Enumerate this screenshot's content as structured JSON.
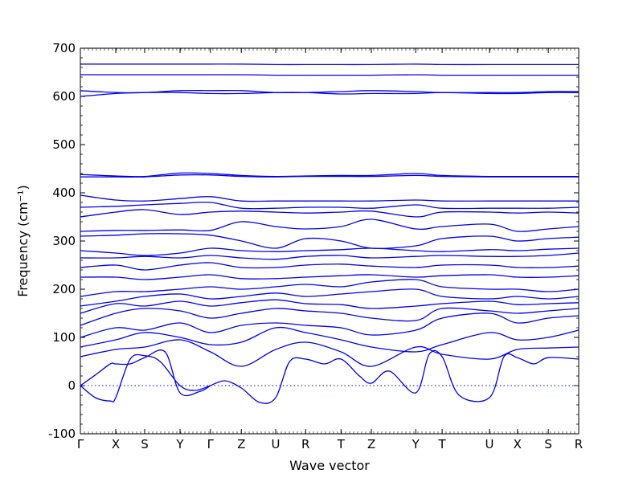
{
  "chart_data": {
    "type": "line",
    "title": "",
    "xlabel": "Wave vector",
    "ylabel": "Frequency (cm⁻¹)",
    "ylim": [
      -100,
      700
    ],
    "yticks": [
      -100,
      0,
      100,
      200,
      300,
      400,
      500,
      600,
      700
    ],
    "x_ticks": [
      {
        "label": "Γ",
        "x": 0.0
      },
      {
        "label": "X",
        "x": 0.071
      },
      {
        "label": "S",
        "x": 0.129
      },
      {
        "label": "Y",
        "x": 0.2
      },
      {
        "label": "Γ",
        "x": 0.261
      },
      {
        "label": "Z",
        "x": 0.323
      },
      {
        "label": "U",
        "x": 0.392
      },
      {
        "label": "R",
        "x": 0.452
      },
      {
        "label": "T",
        "x": 0.523
      },
      {
        "label": "Z",
        "x": 0.584
      },
      {
        "label": "Y",
        "x": 0.673
      },
      {
        "label": "T",
        "x": 0.726
      },
      {
        "label": "U",
        "x": 0.821
      },
      {
        "label": "X",
        "x": 0.877
      },
      {
        "label": "S",
        "x": 0.939
      },
      {
        "label": "R",
        "x": 1.0
      }
    ],
    "zero_reference_line": {
      "y": 0,
      "style": "dotted"
    },
    "line_color": "#0000ee",
    "series": [
      {
        "x": [
          0,
          0.03,
          0.06,
          0.071,
          0.1,
          0.129,
          0.16,
          0.2,
          0.23,
          0.261
        ],
        "y": [
          0,
          -25,
          -32,
          -25,
          55,
          62,
          50,
          0,
          -10,
          0
        ]
      },
      {
        "x": [
          0,
          0.03,
          0.06,
          0.071,
          0.1,
          0.129,
          0.17,
          0.2,
          0.24,
          0.261
        ],
        "y": [
          0,
          22,
          45,
          45,
          45,
          58,
          70,
          -15,
          -12,
          0
        ]
      },
      {
        "x": [
          0.261,
          0.29,
          0.323,
          0.36,
          0.392,
          0.42,
          0.452,
          0.49,
          0.523,
          0.56,
          0.584,
          0.62,
          0.673,
          0.7,
          0.726,
          0.76,
          0.821,
          0.85,
          0.877,
          0.91,
          0.939,
          1.0
        ],
        "y": [
          0,
          10,
          -5,
          -35,
          -25,
          50,
          55,
          45,
          55,
          20,
          5,
          30,
          -15,
          65,
          60,
          -20,
          -25,
          60,
          58,
          45,
          58,
          55
        ]
      },
      {
        "x": [
          0,
          0.071,
          0.129,
          0.2,
          0.261,
          0.323,
          0.392,
          0.452,
          0.523,
          0.584,
          0.673,
          0.726,
          0.821,
          0.877,
          0.939,
          1.0
        ],
        "y": [
          60,
          75,
          80,
          95,
          70,
          40,
          75,
          90,
          70,
          40,
          80,
          65,
          55,
          75,
          78,
          80
        ]
      },
      {
        "x": [
          0,
          0.071,
          0.129,
          0.2,
          0.261,
          0.323,
          0.392,
          0.452,
          0.523,
          0.584,
          0.673,
          0.726,
          0.821,
          0.877,
          0.939,
          1.0
        ],
        "y": [
          80,
          95,
          110,
          100,
          85,
          90,
          120,
          110,
          95,
          80,
          70,
          85,
          110,
          95,
          100,
          115
        ]
      },
      {
        "x": [
          0,
          0.071,
          0.129,
          0.2,
          0.261,
          0.323,
          0.392,
          0.452,
          0.523,
          0.584,
          0.673,
          0.726,
          0.821,
          0.877,
          0.939,
          1.0
        ],
        "y": [
          100,
          120,
          115,
          130,
          110,
          125,
          130,
          125,
          120,
          105,
          115,
          140,
          150,
          130,
          140,
          145
        ]
      },
      {
        "x": [
          0,
          0.071,
          0.129,
          0.2,
          0.261,
          0.323,
          0.392,
          0.452,
          0.523,
          0.584,
          0.673,
          0.726,
          0.821,
          0.877,
          0.939,
          1.0
        ],
        "y": [
          125,
          150,
          160,
          155,
          140,
          150,
          160,
          155,
          150,
          140,
          135,
          160,
          155,
          150,
          155,
          160
        ]
      },
      {
        "x": [
          0,
          0.071,
          0.129,
          0.2,
          0.261,
          0.323,
          0.392,
          0.452,
          0.523,
          0.584,
          0.673,
          0.726,
          0.821,
          0.877,
          0.939,
          1.0
        ],
        "y": [
          150,
          170,
          165,
          175,
          165,
          172,
          178,
          170,
          168,
          160,
          165,
          170,
          175,
          168,
          170,
          172
        ]
      },
      {
        "x": [
          0,
          0.071,
          0.129,
          0.2,
          0.261,
          0.323,
          0.392,
          0.452,
          0.523,
          0.584,
          0.673,
          0.726,
          0.821,
          0.877,
          0.939,
          1.0
        ],
        "y": [
          165,
          175,
          185,
          190,
          180,
          185,
          192,
          185,
          190,
          195,
          200,
          185,
          180,
          185,
          180,
          185
        ]
      },
      {
        "x": [
          0,
          0.071,
          0.129,
          0.2,
          0.261,
          0.323,
          0.392,
          0.452,
          0.523,
          0.584,
          0.673,
          0.726,
          0.821,
          0.877,
          0.939,
          1.0
        ],
        "y": [
          185,
          195,
          195,
          200,
          205,
          200,
          205,
          210,
          205,
          215,
          220,
          205,
          200,
          200,
          195,
          200
        ]
      },
      {
        "x": [
          0,
          0.071,
          0.129,
          0.2,
          0.261,
          0.323,
          0.392,
          0.452,
          0.523,
          0.584,
          0.673,
          0.726,
          0.821,
          0.877,
          0.939,
          1.0
        ],
        "y": [
          225,
          225,
          220,
          225,
          230,
          222,
          222,
          225,
          228,
          230,
          225,
          228,
          230,
          225,
          225,
          228
        ]
      },
      {
        "x": [
          0,
          0.071,
          0.129,
          0.2,
          0.261,
          0.323,
          0.392,
          0.452,
          0.523,
          0.584,
          0.673,
          0.726,
          0.821,
          0.877,
          0.939,
          1.0
        ],
        "y": [
          245,
          250,
          240,
          250,
          255,
          245,
          245,
          250,
          252,
          248,
          245,
          250,
          250,
          245,
          245,
          248
        ]
      },
      {
        "x": [
          0,
          0.071,
          0.129,
          0.2,
          0.261,
          0.323,
          0.392,
          0.452,
          0.523,
          0.584,
          0.673,
          0.726,
          0.821,
          0.877,
          0.939,
          1.0
        ],
        "y": [
          265,
          265,
          268,
          265,
          270,
          265,
          262,
          268,
          270,
          265,
          268,
          270,
          268,
          268,
          270,
          275
        ]
      },
      {
        "x": [
          0,
          0.071,
          0.129,
          0.2,
          0.261,
          0.323,
          0.392,
          0.452,
          0.523,
          0.584,
          0.673,
          0.726,
          0.821,
          0.877,
          0.939,
          1.0
        ],
        "y": [
          280,
          275,
          270,
          275,
          285,
          280,
          278,
          280,
          282,
          285,
          280,
          278,
          282,
          280,
          283,
          285
        ]
      },
      {
        "x": [
          0,
          0.071,
          0.129,
          0.2,
          0.261,
          0.323,
          0.392,
          0.452,
          0.523,
          0.584,
          0.673,
          0.726,
          0.821,
          0.877,
          0.939,
          1.0
        ],
        "y": [
          310,
          312,
          315,
          315,
          312,
          300,
          285,
          305,
          300,
          285,
          290,
          305,
          310,
          300,
          305,
          308
        ]
      },
      {
        "x": [
          0,
          0.071,
          0.129,
          0.2,
          0.261,
          0.323,
          0.392,
          0.452,
          0.523,
          0.584,
          0.673,
          0.726,
          0.821,
          0.877,
          0.939,
          1.0
        ],
        "y": [
          320,
          322,
          322,
          323,
          322,
          340,
          330,
          325,
          330,
          345,
          325,
          330,
          335,
          320,
          325,
          330
        ]
      },
      {
        "x": [
          0,
          0.071,
          0.129,
          0.2,
          0.261,
          0.323,
          0.392,
          0.452,
          0.523,
          0.584,
          0.673,
          0.726,
          0.821,
          0.877,
          0.939,
          1.0
        ],
        "y": [
          350,
          360,
          365,
          355,
          360,
          362,
          360,
          358,
          360,
          362,
          350,
          360,
          360,
          358,
          360,
          358
        ]
      },
      {
        "x": [
          0,
          0.071,
          0.129,
          0.2,
          0.261,
          0.323,
          0.392,
          0.452,
          0.523,
          0.584,
          0.673,
          0.726,
          0.821,
          0.877,
          0.939,
          1.0
        ],
        "y": [
          370,
          372,
          375,
          378,
          380,
          368,
          368,
          370,
          370,
          368,
          375,
          368,
          368,
          368,
          368,
          370
        ]
      },
      {
        "x": [
          0,
          0.071,
          0.129,
          0.2,
          0.261,
          0.323,
          0.392,
          0.452,
          0.523,
          0.584,
          0.673,
          0.726,
          0.821,
          0.877,
          0.939,
          1.0
        ],
        "y": [
          395,
          385,
          383,
          388,
          392,
          383,
          383,
          383,
          383,
          383,
          385,
          383,
          383,
          383,
          383,
          383
        ]
      },
      {
        "x": [
          0,
          0.071,
          0.129,
          0.2,
          0.261,
          0.323,
          0.392,
          0.452,
          0.523,
          0.584,
          0.673,
          0.726,
          0.821,
          0.877,
          0.939,
          1.0
        ],
        "y": [
          433,
          433,
          433,
          437,
          437,
          434,
          433,
          434,
          434,
          434,
          436,
          434,
          433,
          433,
          433,
          433
        ]
      },
      {
        "x": [
          0,
          0.071,
          0.129,
          0.2,
          0.261,
          0.323,
          0.392,
          0.452,
          0.523,
          0.584,
          0.673,
          0.726,
          0.821,
          0.877,
          0.939,
          1.0
        ],
        "y": [
          438,
          435,
          434,
          441,
          440,
          436,
          434,
          435,
          436,
          436,
          440,
          436,
          434,
          434,
          434,
          434
        ]
      },
      {
        "x": [
          0,
          0.071,
          0.129,
          0.2,
          0.261,
          0.323,
          0.392,
          0.452,
          0.523,
          0.584,
          0.673,
          0.726,
          0.821,
          0.877,
          0.939,
          1.0
        ],
        "y": [
          600,
          606,
          608,
          608,
          606,
          606,
          608,
          608,
          605,
          606,
          606,
          608,
          606,
          606,
          608,
          608
        ]
      },
      {
        "x": [
          0,
          0.071,
          0.129,
          0.2,
          0.261,
          0.323,
          0.392,
          0.452,
          0.523,
          0.584,
          0.673,
          0.726,
          0.821,
          0.877,
          0.939,
          1.0
        ],
        "y": [
          612,
          608,
          608,
          612,
          612,
          612,
          608,
          608,
          610,
          612,
          610,
          608,
          608,
          608,
          610,
          610
        ]
      },
      {
        "x": [
          0,
          0.071,
          0.129,
          0.2,
          0.261,
          0.323,
          0.392,
          0.452,
          0.523,
          0.584,
          0.673,
          0.726,
          0.821,
          0.877,
          0.939,
          1.0
        ],
        "y": [
          645,
          645,
          645,
          645,
          645,
          645,
          644,
          644,
          644,
          644,
          645,
          644,
          644,
          644,
          644,
          644
        ]
      },
      {
        "x": [
          0,
          0.071,
          0.129,
          0.2,
          0.261,
          0.323,
          0.392,
          0.452,
          0.523,
          0.584,
          0.673,
          0.726,
          0.821,
          0.877,
          0.939,
          1.0
        ],
        "y": [
          667,
          667,
          667,
          667,
          667,
          667,
          666,
          666,
          666,
          666,
          667,
          666,
          666,
          666,
          666,
          666
        ]
      }
    ]
  }
}
